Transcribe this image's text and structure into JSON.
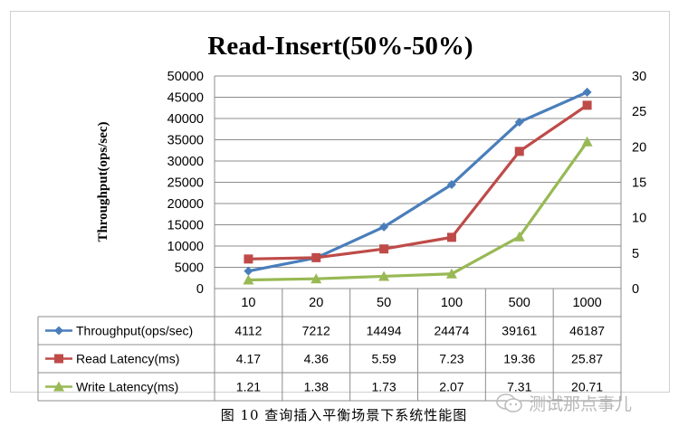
{
  "chart_data": {
    "type": "line",
    "title": "Read-Insert(50%-50%)",
    "ylabel": "Throughput(ops/sec)",
    "categories": [
      "10",
      "20",
      "50",
      "100",
      "500",
      "1000"
    ],
    "y_left": {
      "lim": [
        0,
        50000
      ],
      "ticks": [
        "0",
        "5000",
        "10000",
        "15000",
        "20000",
        "25000",
        "30000",
        "35000",
        "40000",
        "45000",
        "50000"
      ]
    },
    "y_right": {
      "lim": [
        0,
        30
      ],
      "ticks": [
        "0",
        "5",
        "10",
        "15",
        "20",
        "25",
        "30"
      ]
    },
    "grid": true,
    "legend": "data-table",
    "series": [
      {
        "name": "Throughput(ops/sec)",
        "axis": "left",
        "color": "#4a7ebb",
        "marker": "diamond",
        "values": [
          4112,
          7212,
          14494,
          24474,
          39161,
          46187
        ],
        "labels": [
          "4112",
          "7212",
          "14494",
          "24474",
          "39161",
          "46187"
        ]
      },
      {
        "name": "Read Latency(ms)",
        "axis": "right",
        "color": "#be4b48",
        "marker": "square",
        "values": [
          4.17,
          4.36,
          5.59,
          7.23,
          19.36,
          25.87
        ],
        "labels": [
          "4.17",
          "4.36",
          "5.59",
          "7.23",
          "19.36",
          "25.87"
        ]
      },
      {
        "name": "Write Latency(ms)",
        "axis": "right",
        "color": "#98b954",
        "marker": "triangle",
        "values": [
          1.21,
          1.38,
          1.73,
          2.07,
          7.31,
          20.71
        ],
        "labels": [
          "1.21",
          "1.38",
          "1.73",
          "2.07",
          "7.31",
          "20.71"
        ]
      }
    ]
  },
  "caption": "图 10 查询插入平衡场景下系统性能图",
  "watermark": {
    "text": "测试那点事儿",
    "icon": "wechat-icon"
  }
}
